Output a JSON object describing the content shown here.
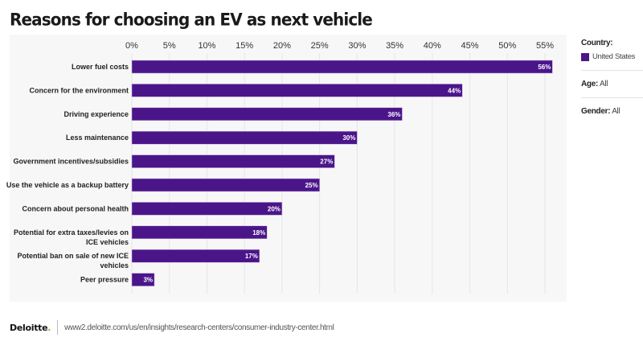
{
  "chart_data": {
    "type": "bar",
    "orientation": "horizontal",
    "title": "Reasons for choosing an EV as next vehicle",
    "categories": [
      "Lower fuel costs",
      "Concern for the environment",
      "Driving experience",
      "Less maintenance",
      "Government incentives/subsidies",
      "Use the vehicle as a backup battery",
      "Concern about personal health",
      "Potential for extra taxes/levies on ICE vehicles",
      "Potential ban on sale of new ICE vehicles",
      "Peer pressure"
    ],
    "category_lines": [
      [
        "Lower fuel costs"
      ],
      [
        "Concern for the environment"
      ],
      [
        "Driving experience"
      ],
      [
        "Less maintenance"
      ],
      [
        "Government incentives/subsidies"
      ],
      [
        "Use the vehicle as a backup battery"
      ],
      [
        "Concern about personal health"
      ],
      [
        "Potential for extra taxes/levies on",
        "ICE vehicles"
      ],
      [
        "Potential ban on sale of new ICE",
        "vehicles"
      ],
      [
        "Peer pressure"
      ]
    ],
    "series": [
      {
        "name": "United States",
        "color": "#4b158a",
        "values": [
          56,
          44,
          36,
          30,
          27,
          25,
          20,
          18,
          17,
          3
        ]
      }
    ],
    "value_labels": [
      "56%",
      "44%",
      "36%",
      "30%",
      "27%",
      "25%",
      "20%",
      "18%",
      "17%",
      "3%"
    ],
    "xlabel": "",
    "ylabel": "",
    "xlim": [
      0,
      55
    ],
    "xticks": [
      0,
      5,
      10,
      15,
      20,
      25,
      30,
      35,
      40,
      45,
      50,
      55
    ],
    "xtick_labels": [
      "0%",
      "5%",
      "10%",
      "15%",
      "20%",
      "25%",
      "30%",
      "35%",
      "40%",
      "45%",
      "50%",
      "55%"
    ],
    "grid": "vertical",
    "axis_position": "top",
    "legend": "right"
  },
  "filters": {
    "country_label": "Country:",
    "country_value": "United States",
    "age_label": "Age:",
    "age_value": "All",
    "gender_label": "Gender:",
    "gender_value": "All"
  },
  "footer": {
    "brand": "Deloitte",
    "brand_dot": ".",
    "url": "www2.deloitte.com/us/en/insights/research-centers/consumer-industry-center.html"
  },
  "colors": {
    "bar": "#4b158a",
    "panel": "#f7f7f7",
    "brand_accent": "#86bc25"
  }
}
